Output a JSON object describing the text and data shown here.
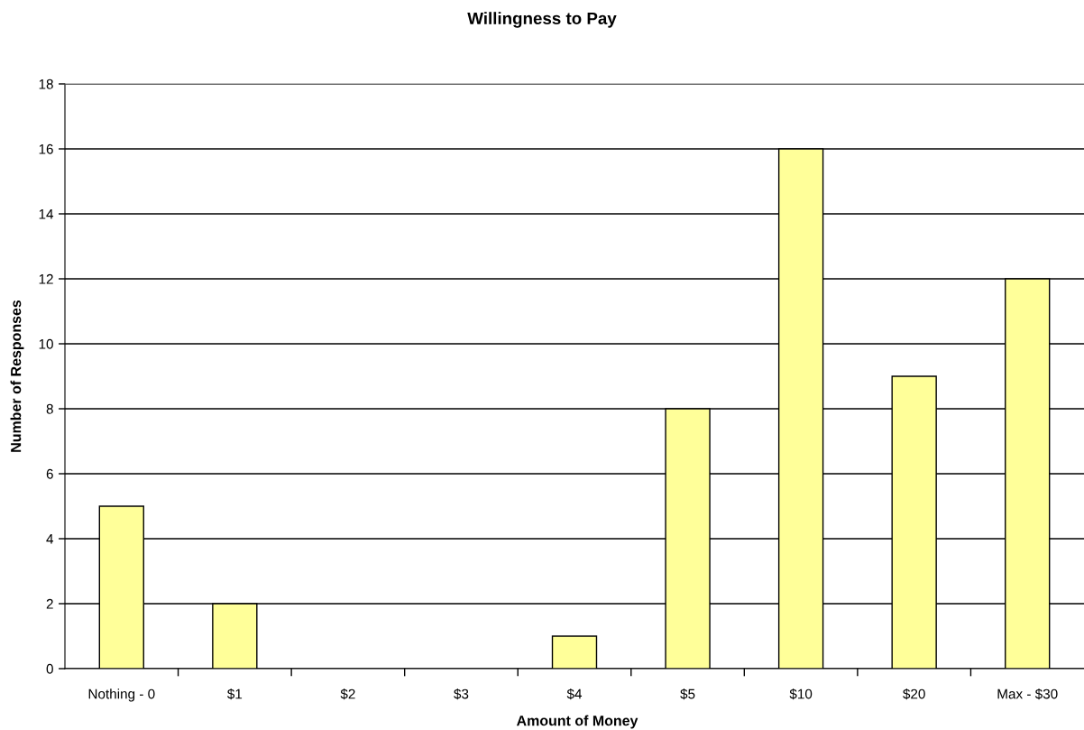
{
  "chart_data": {
    "type": "bar",
    "title": "Willingness to Pay",
    "xlabel": "Amount of Money",
    "ylabel": "Number of Responses",
    "categories": [
      "Nothing - 0",
      "$1",
      "$2",
      "$3",
      "$4",
      "$5",
      "$10",
      "$20",
      "Max - $30"
    ],
    "values": [
      5,
      2,
      0,
      0,
      1,
      8,
      16,
      9,
      12
    ],
    "color": "#ffff99",
    "ylim": [
      0,
      18
    ],
    "yticks": [
      0,
      2,
      4,
      6,
      8,
      10,
      12,
      14,
      16,
      18
    ],
    "grid": "y",
    "legend": false
  }
}
